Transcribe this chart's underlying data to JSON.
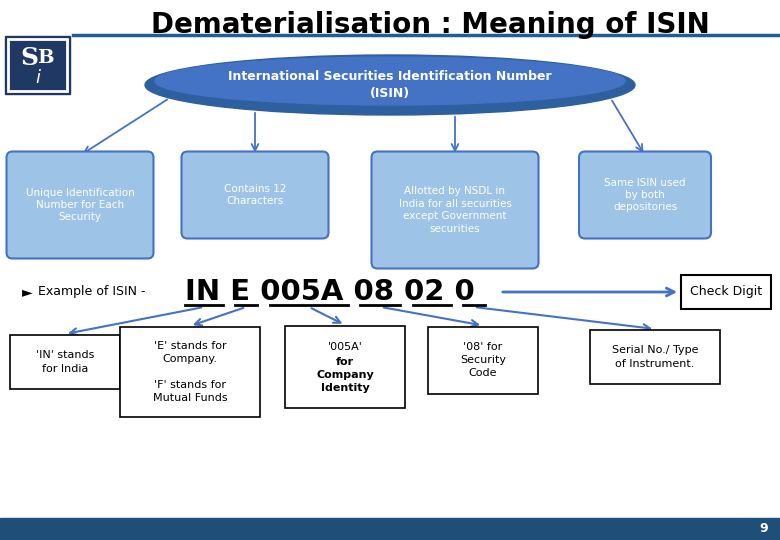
{
  "title": "Dematerialisation : Meaning of ISIN",
  "title_fontsize": 20,
  "bg_color": "#FFFFFF",
  "header_bar_color": "#1F5C99",
  "footer_bar_color": "#1F4E79",
  "ellipse_color": "#4472C4",
  "ellipse_dark_color": "#2F5597",
  "box_color": "#9DC3E6",
  "box_border_color": "#4472C4",
  "box_texts": [
    "Unique Identification\nNumber for Each\nSecurity",
    "Contains 12\nCharacters",
    "Allotted by NSDL in\nIndia for all securities\nexcept Government\nsecurities",
    "Same ISIN used\nby both\ndepositories"
  ],
  "isin_example_prefix": "Example of ISIN - ",
  "isin_code": "IN E 005A 08 02 0",
  "check_digit_label": "Check Digit",
  "bottom_boxes": [
    "'IN' stands\nfor India",
    "'E' stands for\nCompany.\n\n'F' stands for\nMutual Funds",
    "'005A' for\nCompany\nIdentity",
    "'08' for\nSecurity\nCode",
    "Serial No./ Type\nof Instrument."
  ],
  "page_number": "9",
  "arrow_color": "#4472C4",
  "logo_border_color": "#1F3864",
  "logo_fill_color": "#1F3864"
}
